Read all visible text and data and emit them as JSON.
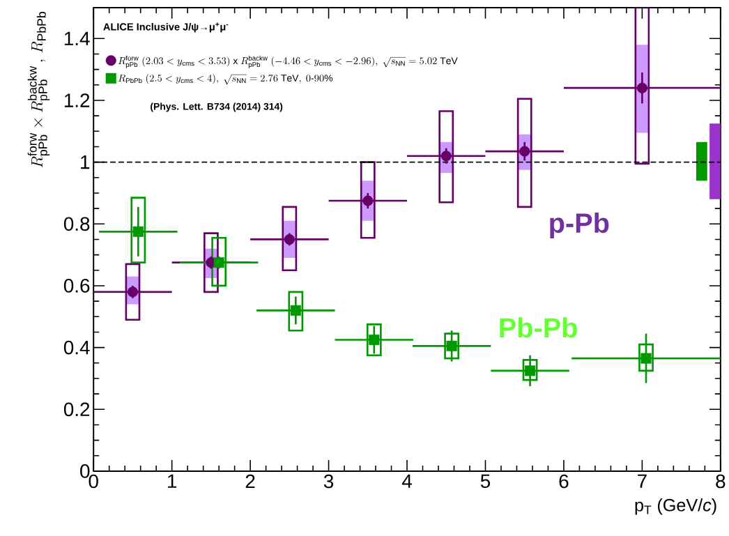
{
  "chart_data": {
    "type": "scatter",
    "title": "ALICE Inclusive J/ψ→μ$^{+}$μ$^{-}$",
    "xlabel": "p$_{T}$ (GeV/*c*)",
    "ylabel": "R^{\\mathrm{forw}}_{\\mathrm{pPb}} \\times R^{\\mathrm{backw}}_{\\mathrm{pPb}} \\,,\\, R_{\\mathrm{PbPb}}",
    "xlim": [
      0,
      8
    ],
    "xticks": [
      0,
      1,
      2,
      3,
      4,
      5,
      6,
      7,
      8
    ],
    "ylim": [
      0,
      1.5
    ],
    "yticks": [
      0,
      0.2,
      0.4,
      0.6,
      0.8,
      1,
      1.2,
      1.4
    ],
    "legend": "top left",
    "annotations": [
      "(Phys. Lett. B734 (2014) 314)",
      "p-Pb",
      "Pb-Pb"
    ],
    "ref_lines": [
      {
        "axis": "y",
        "value": 1,
        "color": "#000000",
        "line_style": "dashed"
      }
    ],
    "series": [
      {
        "name": "R^{\\mathrm{forw}}_{\\mathrm{pPb}}\\ (2.03<y_{\\mathrm{cms}}<3.53)\\ \\mathrm{x}\\ R^{\\mathrm{backw}}_{\\mathrm{pPb}}\\ (-4.46<y_{\\mathrm{cms}}<-2.96),\\ \\sqrt{s_{\\mathrm{NN}}}=5.02\\ \\mathrm{TeV}",
        "color": "#660066",
        "marker": "circle",
        "x": [
          0.5,
          1.5,
          2.5,
          3.5,
          4.5,
          5.5,
          7.0
        ],
        "values": [
          0.58,
          0.675,
          0.75,
          0.875,
          1.02,
          1.035,
          1.24
        ],
        "errors": [
          0.02,
          0.02,
          0.02,
          0.025,
          0.025,
          0.03,
          0.05
        ],
        "xerrors": [
          0.5,
          0.5,
          0.5,
          0.5,
          0.5,
          0.5,
          1.0
        ]
      },
      {
        "name": "R_{\\mathrm{PbPb}}\\ (2.5<y_{\\mathrm{cms}}<4),\\ \\sqrt{s_{\\mathrm{NN}}}=2.76\\ \\mathrm{TeV},\\ 0\\mbox{-}90\\%",
        "color": "#009900",
        "marker": "square",
        "x": [
          0.57,
          1.6,
          2.58,
          3.58,
          4.57,
          5.57,
          7.05
        ],
        "values": [
          0.775,
          0.675,
          0.52,
          0.425,
          0.405,
          0.325,
          0.365
        ],
        "errors": [
          0.08,
          0.02,
          0.045,
          0.045,
          0.05,
          0.05,
          0.08
        ],
        "xerrors": [
          0.5,
          0.5,
          0.5,
          0.5,
          0.5,
          0.5,
          0.95
        ]
      },
      {
        "type": "bar",
        "color": "#cc99ff",
        "x": [
          0.5,
          1.5,
          2.5,
          3.5,
          4.5,
          5.5,
          7.0
        ],
        "base": [
          0.54,
          0.625,
          0.69,
          0.81,
          0.965,
          0.975,
          1.095
        ],
        "values": [
          0.09,
          0.095,
          0.12,
          0.13,
          0.1,
          0.115,
          0.285
        ]
      },
      {
        "type": "bar",
        "line_style": "solid",
        "color": "#660066",
        "x": [
          0.5,
          1.5,
          2.5,
          3.5,
          4.5,
          5.5,
          7.0
        ],
        "base": [
          0.49,
          0.58,
          0.65,
          0.755,
          0.87,
          0.855,
          0.995
        ],
        "values": [
          0.18,
          0.19,
          0.205,
          0.245,
          0.295,
          0.35,
          0.505
        ]
      },
      {
        "type": "bar",
        "line_style": "solid",
        "color": "#009900",
        "x": [
          0.57,
          1.6,
          2.58,
          3.58,
          4.57,
          5.57,
          7.05
        ],
        "base": [
          0.675,
          0.6,
          0.455,
          0.375,
          0.365,
          0.295,
          0.325
        ],
        "values": [
          0.21,
          0.155,
          0.125,
          0.1,
          0.08,
          0.065,
          0.085
        ]
      },
      {
        "type": "bar",
        "colors": [
          "#009900",
          "#9933cc"
        ],
        "x": [
          7.76,
          7.93
        ],
        "base": [
          0.94,
          0.88
        ],
        "values": [
          0.125,
          0.245
        ]
      }
    ]
  }
}
